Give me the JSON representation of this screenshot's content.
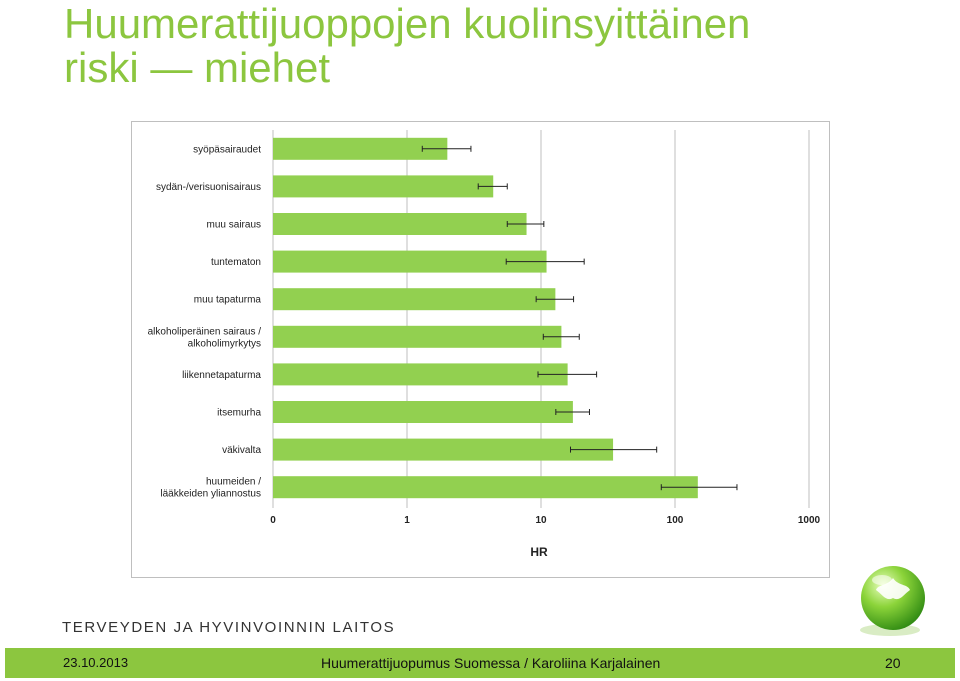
{
  "slide": {
    "title_line1": "Huumerattijuoppojen kuolinsyittäinen",
    "title_line2": "riski — miehet",
    "organization": "TERVEYDEN JA HYVINVOINNIN LAITOS",
    "footer_date": "23.10.2013",
    "footer_center": "Huumerattijuopumus Suomessa / Karoliina Karjalainen",
    "page_number": "20",
    "colors": {
      "accent": "#8cc63f",
      "bar": "#92d050",
      "grid": "#bfbfbf"
    }
  },
  "chart_data": {
    "type": "bar",
    "orientation": "horizontal",
    "xscale": "log",
    "xlabel": "HR",
    "xlim": [
      0.1,
      1000
    ],
    "xticks": [
      "0",
      "1",
      "10",
      "100",
      "1000"
    ],
    "grid": true,
    "categories": [
      [
        "syöpäsairaudet"
      ],
      [
        "sydän-/verisuonisairaus"
      ],
      [
        "muu sairaus"
      ],
      [
        "tuntematon"
      ],
      [
        "muu tapaturma"
      ],
      [
        "alkoholiperäinen sairaus /",
        "alkoholimyrkytys"
      ],
      [
        "liikennetapaturma"
      ],
      [
        "itsemurha"
      ],
      [
        "väkivalta"
      ],
      [
        "huumeiden /",
        "lääkkeiden yliannostus"
      ]
    ],
    "values": [
      2.0,
      4.4,
      7.8,
      11.0,
      12.8,
      14.2,
      15.8,
      17.3,
      34.5,
      148.0
    ],
    "error_low": [
      1.3,
      3.4,
      5.6,
      5.5,
      9.2,
      10.4,
      9.5,
      12.9,
      16.6,
      79.0
    ],
    "error_high": [
      3.0,
      5.6,
      10.5,
      21.0,
      17.5,
      19.3,
      26.0,
      23.0,
      73.0,
      290.0
    ]
  }
}
